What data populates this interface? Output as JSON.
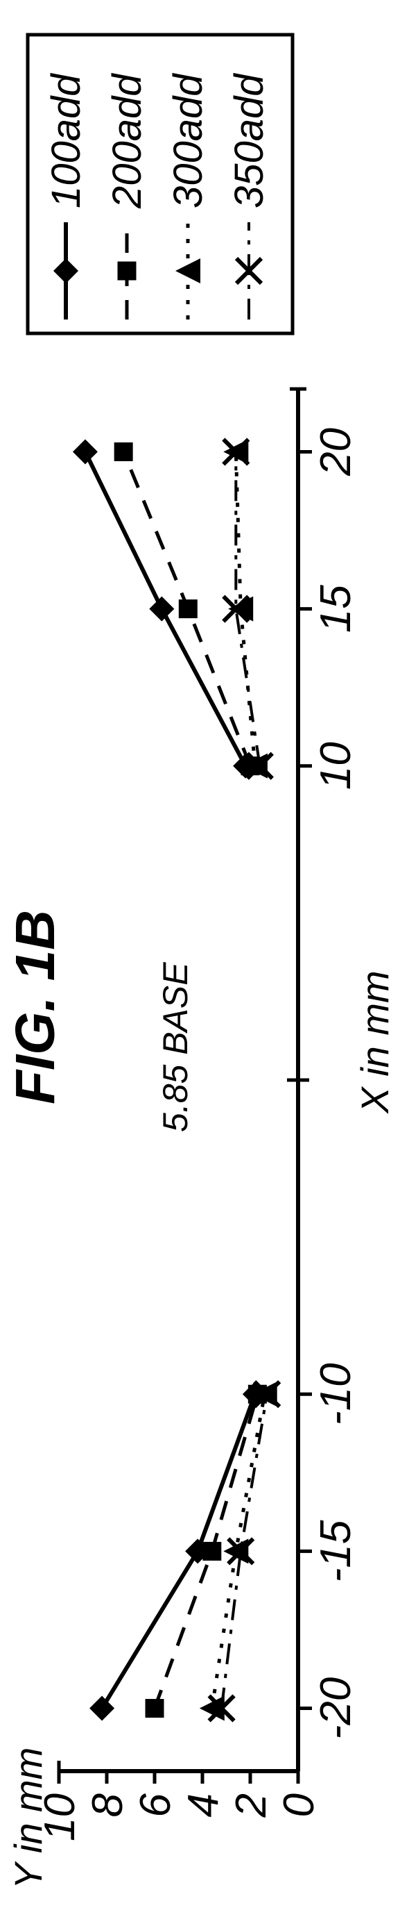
{
  "figure": {
    "title": "FIG. 1B",
    "inner_label": "5.85 BASE",
    "x_axis": {
      "label": "X in mm",
      "ticks": [
        -20,
        -15,
        -10,
        10,
        15,
        20
      ],
      "min": -22,
      "max": 22
    },
    "y_axis": {
      "label": "Y in mm",
      "ticks": [
        0,
        2,
        4,
        6,
        8,
        10
      ],
      "min": 0,
      "max": 10
    },
    "series": [
      {
        "name": "100add",
        "marker": "diamond",
        "dash": "solid",
        "stroke_width": 6,
        "color": "#000000",
        "points": [
          [
            -20,
            8.2
          ],
          [
            -15,
            4.2
          ],
          [
            -10,
            1.8
          ],
          [
            10,
            2.2
          ],
          [
            15,
            5.7
          ],
          [
            20,
            8.9
          ]
        ]
      },
      {
        "name": "200add",
        "marker": "square",
        "dash": "dash",
        "stroke_width": 5,
        "color": "#000000",
        "points": [
          [
            -20,
            6.0
          ],
          [
            -15,
            3.6
          ],
          [
            -10,
            1.7
          ],
          [
            10,
            2.0
          ],
          [
            15,
            4.6
          ],
          [
            20,
            7.3
          ]
        ]
      },
      {
        "name": "300add",
        "marker": "triangle",
        "dash": "dot",
        "stroke_width": 5,
        "color": "#000000",
        "points": [
          [
            -20,
            3.6
          ],
          [
            -15,
            2.6
          ],
          [
            -10,
            1.4
          ],
          [
            10,
            1.8
          ],
          [
            15,
            2.4
          ],
          [
            20,
            2.6
          ]
        ]
      },
      {
        "name": "350add",
        "marker": "x",
        "dash": "dashdot",
        "stroke_width": 4,
        "color": "#000000",
        "points": [
          [
            -20,
            3.2
          ],
          [
            -15,
            2.4
          ],
          [
            -10,
            1.3
          ],
          [
            10,
            1.6
          ],
          [
            15,
            2.6
          ],
          [
            20,
            2.6
          ]
        ]
      }
    ],
    "legend": {
      "position": "right"
    },
    "colors": {
      "background": "#ffffff",
      "axis": "#000000"
    }
  }
}
